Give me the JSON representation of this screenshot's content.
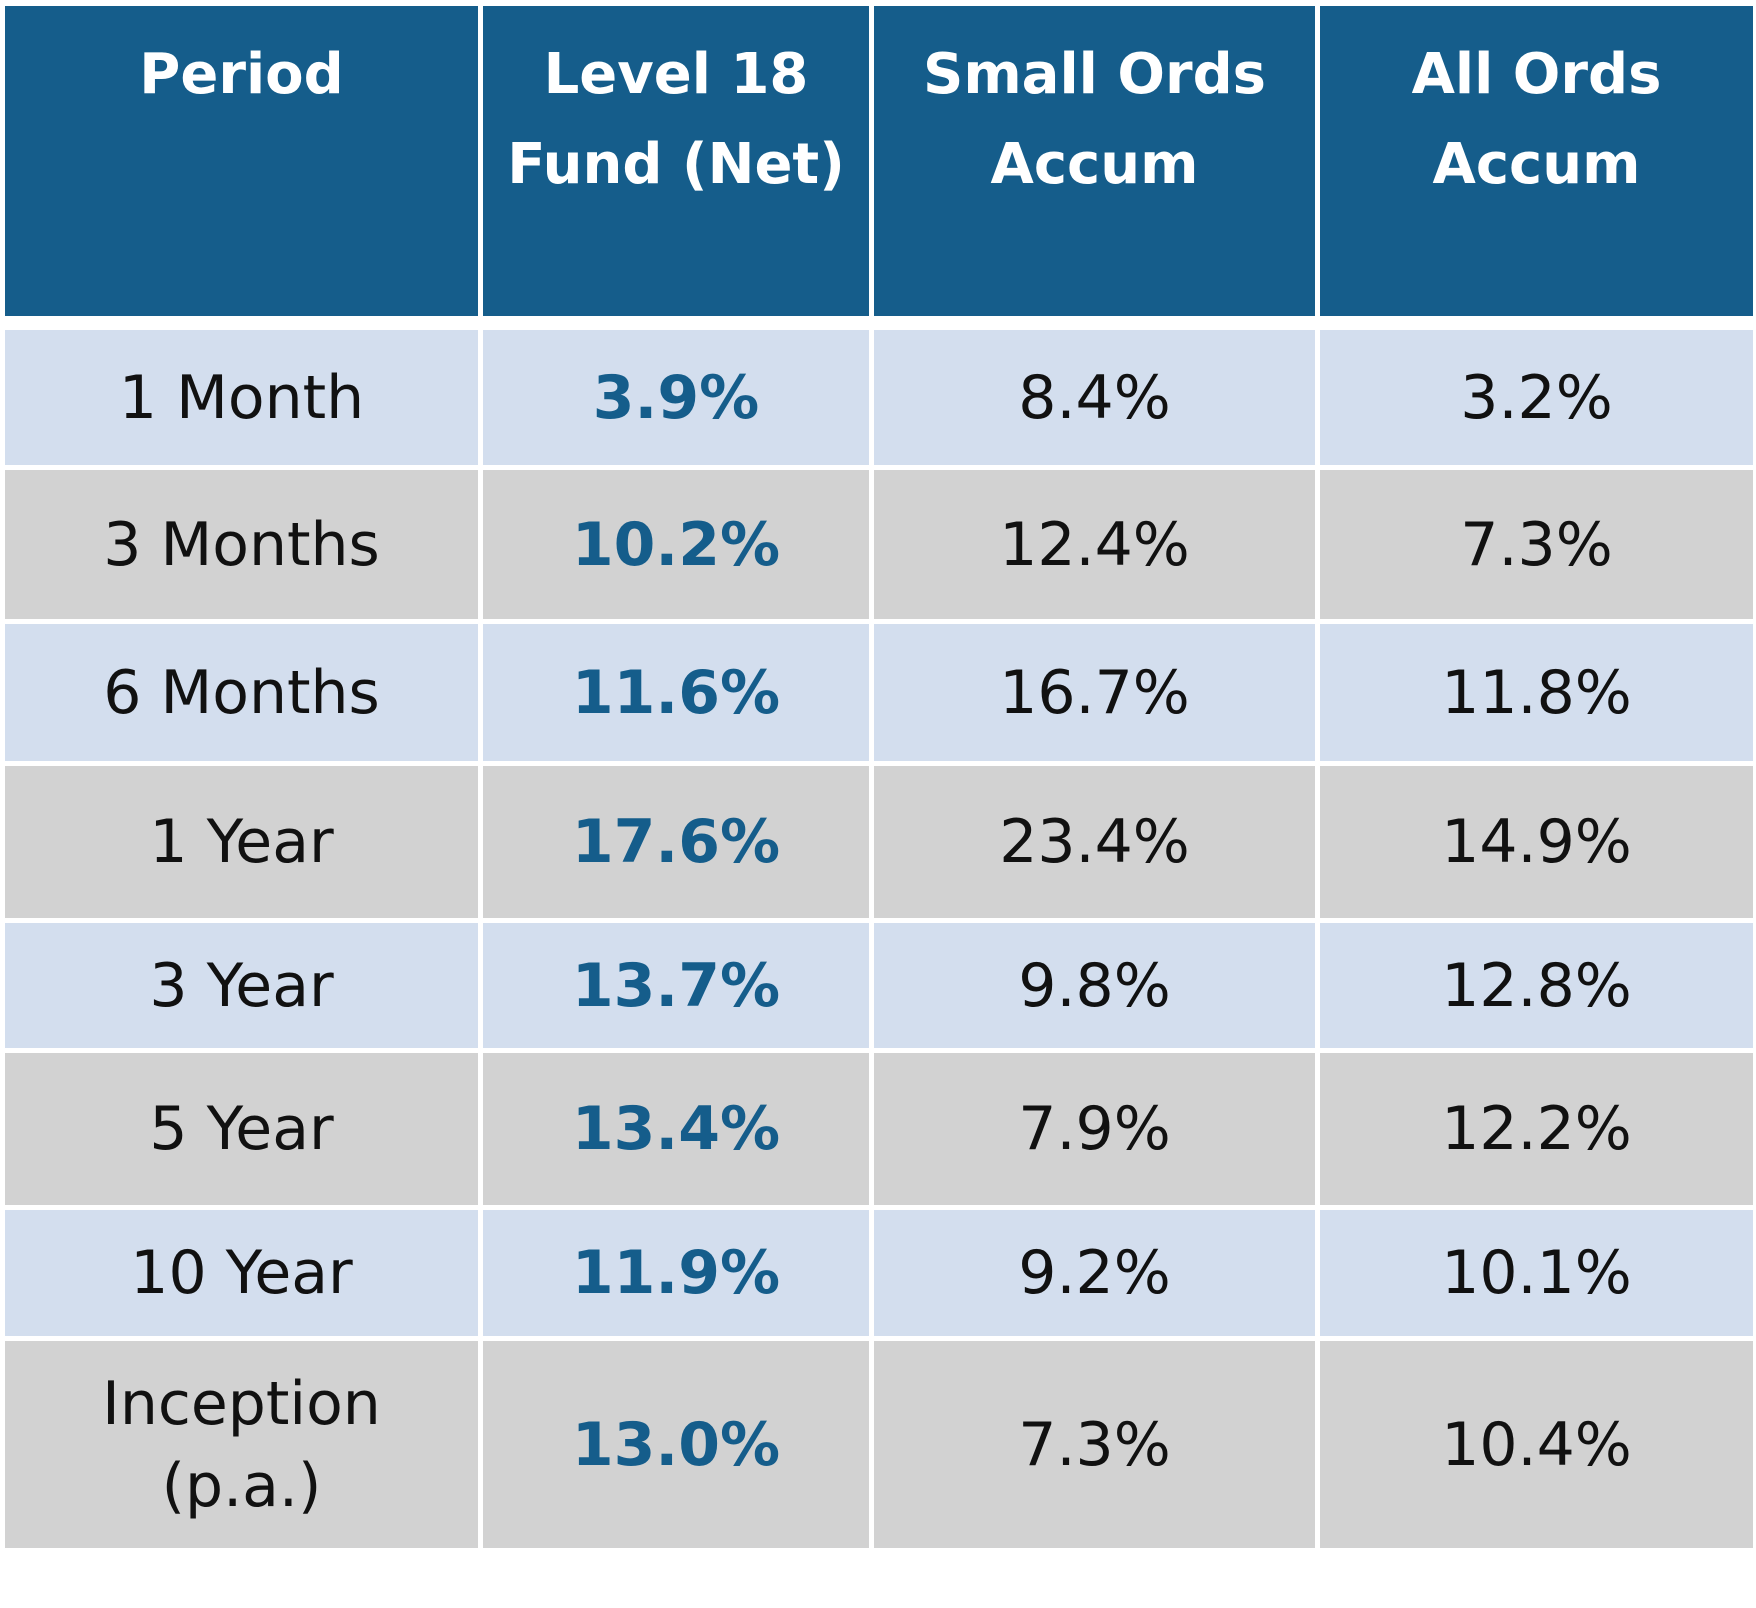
{
  "chart_data": {
    "type": "table",
    "columns": [
      "Period",
      "Level 18 Fund (Net)",
      "Small Ords Accum",
      "All Ords Accum"
    ],
    "header_lines": [
      [
        "Period"
      ],
      [
        "Level 18",
        "Fund (Net)"
      ],
      [
        "Small Ords",
        "Accum"
      ],
      [
        "All Ords",
        "Accum"
      ]
    ],
    "rows": [
      {
        "period_lines": [
          "1 Month"
        ],
        "fund": "3.9%",
        "small_ords": "8.4%",
        "all_ords": "3.2%"
      },
      {
        "period_lines": [
          "3 Months"
        ],
        "fund": "10.2%",
        "small_ords": "12.4%",
        "all_ords": "7.3%"
      },
      {
        "period_lines": [
          "6 Months"
        ],
        "fund": "11.6%",
        "small_ords": "16.7%",
        "all_ords": "11.8%"
      },
      {
        "period_lines": [
          "1 Year"
        ],
        "fund": "17.6%",
        "small_ords": "23.4%",
        "all_ords": "14.9%"
      },
      {
        "period_lines": [
          "3 Year"
        ],
        "fund": "13.7%",
        "small_ords": "9.8%",
        "all_ords": "12.8%"
      },
      {
        "period_lines": [
          "5 Year"
        ],
        "fund": "13.4%",
        "small_ords": "7.9%",
        "all_ords": "12.2%"
      },
      {
        "period_lines": [
          "10 Year"
        ],
        "fund": "11.9%",
        "small_ords": "9.2%",
        "all_ords": "10.1%"
      },
      {
        "period_lines": [
          "Inception",
          "(p.a.)"
        ],
        "fund": "13.0%",
        "small_ords": "7.3%",
        "all_ords": "10.4%"
      }
    ]
  },
  "colors": {
    "header_bg": "#155d8b",
    "header_text": "#ffffff",
    "fund_value": "#155d8b",
    "row_light": "#d3deee",
    "row_grey": "#d2d2d2",
    "gridline": "#ffffff"
  }
}
